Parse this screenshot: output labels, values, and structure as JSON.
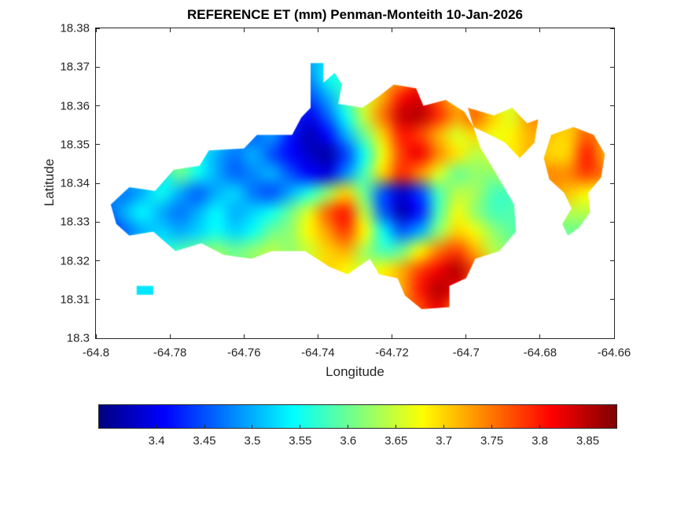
{
  "figure": {
    "background": "#ffffff",
    "text_color": "#262626",
    "axes_color": "#262626"
  },
  "chart_data": {
    "type": "heatmap",
    "title": "REFERENCE ET (mm) Penman-Monteith 10-Jan-2026",
    "xlabel": "Longitude",
    "ylabel": "Latitude",
    "xlim": [
      -64.8,
      -64.66
    ],
    "ylim": [
      18.3,
      18.38
    ],
    "x_ticks": [
      -64.8,
      -64.78,
      -64.76,
      -64.74,
      -64.72,
      -64.7,
      -64.68,
      -64.66
    ],
    "x_tick_labels": [
      "-64.8",
      "-64.78",
      "-64.76",
      "-64.74",
      "-64.72",
      "-64.7",
      "-64.68",
      "-64.66"
    ],
    "y_ticks": [
      18.3,
      18.31,
      18.32,
      18.33,
      18.34,
      18.35,
      18.36,
      18.37,
      18.38
    ],
    "y_tick_labels": [
      "18.3",
      "18.31",
      "18.32",
      "18.33",
      "18.34",
      "18.35",
      "18.36",
      "18.37",
      "18.38"
    ],
    "colormap": "jet",
    "clim": [
      3.34,
      3.88
    ],
    "grid_on": false,
    "colorbar": {
      "orientation": "horizontal",
      "ticks": [
        3.4,
        3.45,
        3.5,
        3.55,
        3.6,
        3.65,
        3.7,
        3.75,
        3.8,
        3.85
      ],
      "tick_labels": [
        "3.4",
        "3.45",
        "3.5",
        "3.55",
        "3.6",
        "3.65",
        "3.7",
        "3.75",
        "3.8",
        "3.85"
      ]
    },
    "grid": {
      "x0": -64.7975,
      "y0": 18.3775,
      "dx": 0.005,
      "dy": -0.005,
      "ncols": 28,
      "nrows": 16,
      "values": [
        [
          null,
          null,
          null,
          null,
          null,
          null,
          null,
          null,
          null,
          null,
          null,
          null,
          null,
          null,
          null,
          null,
          null,
          null,
          null,
          null,
          null,
          null,
          null,
          null,
          null,
          null,
          null,
          null
        ],
        [
          null,
          null,
          null,
          null,
          null,
          null,
          null,
          null,
          null,
          null,
          null,
          3.5,
          3.52,
          null,
          null,
          null,
          null,
          null,
          null,
          null,
          null,
          null,
          null,
          null,
          null,
          null,
          null,
          null
        ],
        [
          null,
          null,
          null,
          null,
          null,
          null,
          null,
          null,
          null,
          null,
          null,
          3.48,
          3.55,
          null,
          null,
          null,
          3.72,
          3.78,
          null,
          null,
          null,
          null,
          null,
          null,
          null,
          null,
          null,
          null
        ],
        [
          null,
          null,
          null,
          null,
          null,
          null,
          null,
          null,
          null,
          null,
          3.55,
          3.45,
          3.5,
          3.58,
          3.65,
          3.72,
          3.8,
          3.83,
          3.76,
          3.7,
          3.72,
          3.66,
          null,
          null,
          null,
          null,
          null,
          null
        ],
        [
          null,
          null,
          null,
          null,
          null,
          null,
          null,
          null,
          3.56,
          3.5,
          3.45,
          3.4,
          3.46,
          3.55,
          3.65,
          3.75,
          3.84,
          3.85,
          3.79,
          3.73,
          3.76,
          3.7,
          3.66,
          3.74,
          null,
          null,
          null,
          null
        ],
        [
          null,
          null,
          null,
          null,
          null,
          3.6,
          3.55,
          3.5,
          3.46,
          3.49,
          3.42,
          3.37,
          3.41,
          3.5,
          3.6,
          3.7,
          3.8,
          3.78,
          3.72,
          3.66,
          3.7,
          3.67,
          null,
          3.72,
          null,
          3.7,
          3.76,
          3.73
        ],
        [
          null,
          null,
          null,
          3.6,
          3.62,
          3.55,
          3.5,
          3.47,
          3.5,
          3.45,
          3.41,
          3.38,
          3.36,
          3.44,
          3.55,
          3.67,
          3.78,
          3.82,
          3.74,
          3.69,
          3.64,
          null,
          null,
          null,
          null,
          3.7,
          3.8,
          3.72
        ],
        [
          null,
          3.55,
          3.5,
          3.53,
          3.6,
          3.55,
          3.5,
          3.46,
          3.48,
          3.5,
          3.45,
          3.41,
          3.39,
          3.48,
          3.58,
          3.7,
          3.79,
          3.74,
          3.66,
          3.6,
          null,
          null,
          null,
          null,
          null,
          3.74,
          3.78,
          null
        ],
        [
          3.5,
          3.47,
          3.5,
          3.55,
          3.5,
          3.46,
          3.5,
          3.52,
          3.47,
          3.45,
          3.5,
          3.56,
          3.62,
          3.7,
          3.6,
          3.45,
          3.38,
          3.44,
          3.58,
          3.64,
          null,
          null,
          null,
          null,
          null,
          null,
          3.68,
          null
        ],
        [
          3.45,
          3.5,
          3.54,
          3.5,
          3.47,
          3.5,
          3.54,
          3.5,
          3.52,
          3.55,
          3.6,
          3.66,
          3.76,
          3.8,
          3.64,
          3.46,
          3.37,
          3.42,
          3.58,
          3.67,
          3.62,
          3.58,
          null,
          null,
          null,
          null,
          3.64,
          null
        ],
        [
          3.43,
          3.46,
          3.5,
          3.52,
          3.5,
          3.52,
          3.55,
          3.52,
          3.55,
          3.6,
          3.62,
          3.68,
          3.73,
          3.78,
          3.68,
          3.55,
          3.46,
          3.5,
          3.62,
          3.7,
          3.67,
          3.62,
          3.59,
          null,
          null,
          null,
          3.6,
          null
        ],
        [
          null,
          3.5,
          3.53,
          3.55,
          3.58,
          3.6,
          3.62,
          3.6,
          3.62,
          3.64,
          3.62,
          3.65,
          3.7,
          3.72,
          3.63,
          3.58,
          3.6,
          3.68,
          3.75,
          3.78,
          3.72,
          3.64,
          null,
          null,
          null,
          null,
          null,
          null
        ],
        [
          null,
          null,
          null,
          null,
          null,
          null,
          null,
          null,
          null,
          null,
          3.65,
          3.68,
          3.7,
          3.68,
          3.65,
          3.68,
          3.72,
          3.78,
          3.82,
          3.85,
          3.77,
          null,
          null,
          null,
          null,
          null,
          null,
          null
        ],
        [
          null,
          null,
          3.53,
          null,
          null,
          null,
          null,
          null,
          null,
          null,
          null,
          null,
          null,
          null,
          null,
          null,
          3.72,
          3.8,
          3.85,
          3.82,
          3.74,
          null,
          null,
          null,
          null,
          null,
          null,
          null
        ],
        [
          null,
          null,
          null,
          null,
          null,
          null,
          null,
          null,
          null,
          null,
          null,
          null,
          null,
          null,
          null,
          null,
          null,
          3.77,
          3.82,
          3.74,
          null,
          null,
          null,
          null,
          null,
          null,
          null,
          null
        ],
        [
          null,
          null,
          null,
          null,
          null,
          null,
          null,
          null,
          null,
          null,
          null,
          null,
          null,
          null,
          null,
          null,
          null,
          null,
          null,
          null,
          null,
          null,
          null,
          null,
          null,
          null,
          null,
          null
        ]
      ]
    },
    "island_outline": {
      "main": [
        [
          -64.796,
          18.3345
        ],
        [
          -64.791,
          18.339
        ],
        [
          -64.784,
          18.338
        ],
        [
          -64.779,
          18.3435
        ],
        [
          -64.772,
          18.3445
        ],
        [
          -64.7695,
          18.3485
        ],
        [
          -64.76,
          18.349
        ],
        [
          -64.7565,
          18.3525
        ],
        [
          -64.747,
          18.3525
        ],
        [
          -64.7445,
          18.357
        ],
        [
          -64.742,
          18.3595
        ],
        [
          -64.742,
          18.371
        ],
        [
          -64.7385,
          18.371
        ],
        [
          -64.7385,
          18.366
        ],
        [
          -64.7355,
          18.3685
        ],
        [
          -64.7335,
          18.3655
        ],
        [
          -64.7345,
          18.3605
        ],
        [
          -64.728,
          18.3595
        ],
        [
          -64.7235,
          18.3625
        ],
        [
          -64.7195,
          18.3655
        ],
        [
          -64.7135,
          18.3645
        ],
        [
          -64.7115,
          18.36
        ],
        [
          -64.7055,
          18.3615
        ],
        [
          -64.7005,
          18.3585
        ],
        [
          -64.698,
          18.3545
        ],
        [
          -64.696,
          18.349
        ],
        [
          -64.6925,
          18.3435
        ],
        [
          -64.687,
          18.3345
        ],
        [
          -64.6865,
          18.3275
        ],
        [
          -64.691,
          18.3225
        ],
        [
          -64.6975,
          18.3205
        ],
        [
          -64.7,
          18.3155
        ],
        [
          -64.7045,
          18.3135
        ],
        [
          -64.7045,
          18.308
        ],
        [
          -64.712,
          18.3075
        ],
        [
          -64.7165,
          18.311
        ],
        [
          -64.7185,
          18.3155
        ],
        [
          -64.7235,
          18.3165
        ],
        [
          -64.726,
          18.3205
        ],
        [
          -64.732,
          18.3165
        ],
        [
          -64.737,
          18.3185
        ],
        [
          -64.7435,
          18.3225
        ],
        [
          -64.7525,
          18.3225
        ],
        [
          -64.758,
          18.3205
        ],
        [
          -64.7655,
          18.3215
        ],
        [
          -64.7715,
          18.3245
        ],
        [
          -64.7785,
          18.3225
        ],
        [
          -64.7845,
          18.3275
        ],
        [
          -64.791,
          18.3265
        ],
        [
          -64.7945,
          18.3295
        ]
      ],
      "arm": [
        [
          -64.6995,
          18.3595
        ],
        [
          -64.6925,
          18.3575
        ],
        [
          -64.6875,
          18.3595
        ],
        [
          -64.6835,
          18.3555
        ],
        [
          -64.6805,
          18.3565
        ],
        [
          -64.6815,
          18.3505
        ],
        [
          -64.6855,
          18.3465
        ],
        [
          -64.6895,
          18.3505
        ],
        [
          -64.6935,
          18.3525
        ],
        [
          -64.698,
          18.3545
        ]
      ],
      "east_blob": [
        [
          -64.677,
          18.3525
        ],
        [
          -64.671,
          18.3545
        ],
        [
          -64.6655,
          18.3525
        ],
        [
          -64.6625,
          18.3475
        ],
        [
          -64.6635,
          18.3415
        ],
        [
          -64.667,
          18.3375
        ],
        [
          -64.6665,
          18.3325
        ],
        [
          -64.6695,
          18.3285
        ],
        [
          -64.6725,
          18.3265
        ],
        [
          -64.674,
          18.3295
        ],
        [
          -64.6715,
          18.3335
        ],
        [
          -64.6735,
          18.3375
        ],
        [
          -64.6775,
          18.341
        ],
        [
          -64.679,
          18.3465
        ]
      ],
      "speck": [
        [
          -64.789,
          18.3135
        ],
        [
          -64.7845,
          18.3135
        ],
        [
          -64.7845,
          18.3112
        ],
        [
          -64.789,
          18.3112
        ]
      ]
    }
  }
}
